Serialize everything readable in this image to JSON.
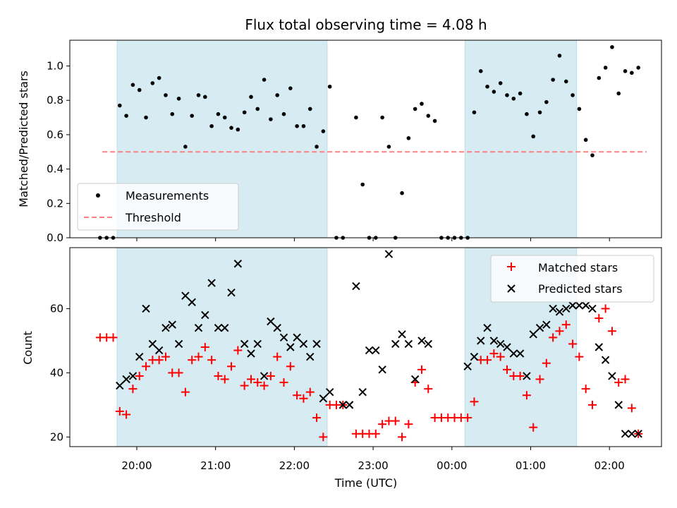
{
  "chart_data": [
    {
      "type": "scatter",
      "title": "Flux total observing time = 4.08 h",
      "ylabel": "Matched/Predicted stars",
      "ylim": [
        0,
        1.15
      ],
      "yticks": [
        "0.0",
        "0.2",
        "0.4",
        "0.6",
        "0.8",
        "1.0"
      ],
      "shaded_intervals": [
        [
          "19:45",
          "22:25"
        ],
        [
          "00:10",
          "01:35"
        ]
      ],
      "threshold": {
        "name": "Threshold",
        "value": 0.5,
        "x_range": [
          "19:30",
          "02:30"
        ],
        "color": "#ff8080"
      },
      "legend": {
        "position": "lower-left",
        "entries": [
          "Measurements",
          "Threshold"
        ]
      },
      "series": [
        {
          "name": "Measurements",
          "color": "#000000",
          "x": [
            "19:32",
            "19:37",
            "19:42",
            "19:47",
            "19:52",
            "19:57",
            "20:02",
            "20:07",
            "20:12",
            "20:17",
            "20:22",
            "20:27",
            "20:32",
            "20:37",
            "20:42",
            "20:47",
            "20:52",
            "20:57",
            "21:02",
            "21:07",
            "21:12",
            "21:17",
            "21:22",
            "21:27",
            "21:32",
            "21:37",
            "21:42",
            "21:47",
            "21:52",
            "21:57",
            "22:02",
            "22:07",
            "22:12",
            "22:17",
            "22:22",
            "22:27",
            "22:32",
            "22:37",
            "22:47",
            "22:52",
            "22:57",
            "23:02",
            "23:07",
            "23:12",
            "23:17",
            "23:22",
            "23:27",
            "23:32",
            "23:37",
            "23:42",
            "23:47",
            "23:52",
            "23:57",
            "00:02",
            "00:07",
            "00:12",
            "00:17",
            "00:22",
            "00:27",
            "00:32",
            "00:37",
            "00:42",
            "00:47",
            "00:52",
            "00:57",
            "01:02",
            "01:07",
            "01:12",
            "01:17",
            "01:22",
            "01:27",
            "01:32",
            "01:37",
            "01:42",
            "01:47",
            "01:52",
            "01:57",
            "02:02",
            "02:07",
            "02:12",
            "02:17",
            "02:22"
          ],
          "y": [
            0.0,
            0.0,
            0.0,
            0.77,
            0.71,
            0.89,
            0.86,
            0.7,
            0.9,
            0.93,
            0.83,
            0.72,
            0.81,
            0.53,
            0.71,
            0.83,
            0.82,
            0.65,
            0.72,
            0.7,
            0.64,
            0.63,
            0.73,
            0.82,
            0.75,
            0.92,
            0.69,
            0.83,
            0.72,
            0.87,
            0.65,
            0.65,
            0.75,
            0.53,
            0.62,
            0.88,
            0.0,
            0.0,
            0.7,
            0.31,
            0.0,
            0.0,
            0.7,
            0.53,
            0.0,
            0.26,
            0.58,
            0.75,
            0.78,
            0.71,
            0.68,
            0.0,
            0.0,
            0.0,
            0.0,
            0.0,
            0.73,
            0.97,
            0.88,
            0.85,
            0.9,
            0.83,
            0.81,
            0.84,
            0.72,
            0.59,
            0.73,
            0.79,
            0.92,
            1.06,
            0.91,
            0.83,
            0.75,
            0.57,
            0.48,
            0.93,
            0.99,
            1.11,
            0.84,
            0.97,
            0.96,
            0.99
          ]
        }
      ]
    },
    {
      "type": "scatter",
      "xlabel": "Time (UTC)",
      "ylabel": "Count",
      "ylim": [
        17,
        79
      ],
      "yticks": [
        "20",
        "40",
        "60"
      ],
      "xticks": [
        "20:00",
        "21:00",
        "22:00",
        "23:00",
        "00:00",
        "01:00",
        "02:00"
      ],
      "legend": {
        "position": "top-right",
        "entries": [
          "Matched stars",
          "Predicted stars"
        ]
      },
      "series": [
        {
          "name": "Matched stars",
          "color": "#ff0000",
          "marker": "+",
          "x": [
            "19:32",
            "19:37",
            "19:42",
            "19:47",
            "19:52",
            "19:57",
            "20:02",
            "20:07",
            "20:12",
            "20:17",
            "20:22",
            "20:27",
            "20:32",
            "20:37",
            "20:42",
            "20:47",
            "20:52",
            "20:57",
            "21:02",
            "21:07",
            "21:12",
            "21:17",
            "21:22",
            "21:27",
            "21:32",
            "21:37",
            "21:42",
            "21:47",
            "21:52",
            "21:57",
            "22:02",
            "22:07",
            "22:12",
            "22:17",
            "22:22",
            "22:27",
            "22:32",
            "22:37",
            "22:47",
            "22:52",
            "22:57",
            "23:02",
            "23:07",
            "23:12",
            "23:17",
            "23:22",
            "23:27",
            "23:32",
            "23:37",
            "23:42",
            "23:47",
            "23:52",
            "23:57",
            "00:02",
            "00:07",
            "00:12",
            "00:17",
            "00:22",
            "00:27",
            "00:32",
            "00:37",
            "00:42",
            "00:47",
            "00:52",
            "00:57",
            "01:02",
            "01:07",
            "01:12",
            "01:17",
            "01:22",
            "01:27",
            "01:32",
            "01:37",
            "01:42",
            "01:47",
            "01:52",
            "01:57",
            "02:02",
            "02:07",
            "02:12",
            "02:17",
            "02:22"
          ],
          "y": [
            51,
            51,
            51,
            28,
            27,
            35,
            39,
            42,
            44,
            44,
            45,
            40,
            40,
            34,
            44,
            45,
            48,
            44,
            39,
            38,
            42,
            47,
            36,
            38,
            37,
            36,
            39,
            45,
            37,
            42,
            33,
            32,
            34,
            26,
            20,
            30,
            30,
            30,
            21,
            21,
            21,
            21,
            24,
            25,
            25,
            20,
            24,
            37,
            41,
            35,
            26,
            26,
            26,
            26,
            26,
            26,
            31,
            44,
            44,
            46,
            45,
            41,
            39,
            39,
            33,
            23,
            38,
            43,
            51,
            53,
            55,
            49,
            45,
            35,
            30,
            57,
            60,
            53,
            37,
            38,
            29,
            21
          ]
        },
        {
          "name": "Predicted stars",
          "color": "#000000",
          "marker": "x",
          "x": [
            "19:47",
            "19:52",
            "19:57",
            "20:02",
            "20:07",
            "20:12",
            "20:17",
            "20:22",
            "20:27",
            "20:32",
            "20:37",
            "20:42",
            "20:47",
            "20:52",
            "20:57",
            "21:02",
            "21:07",
            "21:12",
            "21:17",
            "21:22",
            "21:27",
            "21:32",
            "21:37",
            "21:42",
            "21:47",
            "21:52",
            "21:57",
            "22:02",
            "22:07",
            "22:12",
            "22:17",
            "22:22",
            "22:27",
            "22:37",
            "22:42",
            "22:47",
            "22:52",
            "22:57",
            "23:02",
            "23:07",
            "23:12",
            "23:17",
            "23:22",
            "23:27",
            "23:32",
            "23:37",
            "23:42",
            "00:12",
            "00:17",
            "00:22",
            "00:27",
            "00:32",
            "00:37",
            "00:42",
            "00:47",
            "00:52",
            "00:57",
            "01:02",
            "01:07",
            "01:12",
            "01:17",
            "01:22",
            "01:27",
            "01:32",
            "01:37",
            "01:42",
            "01:47",
            "01:52",
            "01:57",
            "02:02",
            "02:07",
            "02:12",
            "02:17",
            "02:22"
          ],
          "y": [
            36,
            38,
            39,
            45,
            60,
            49,
            47,
            54,
            55,
            49,
            64,
            62,
            54,
            58,
            68,
            54,
            54,
            65,
            74,
            49,
            46,
            49,
            39,
            56,
            54,
            51,
            48,
            51,
            49,
            45,
            49,
            32,
            34,
            30,
            30,
            67,
            34,
            47,
            47,
            41,
            77,
            49,
            52,
            49,
            38,
            50,
            49,
            42,
            45,
            50,
            54,
            50,
            49,
            48,
            46,
            46,
            39,
            52,
            54,
            55,
            60,
            59,
            60,
            61,
            61,
            61,
            60,
            48,
            44,
            39,
            30,
            21,
            21,
            21
          ]
        }
      ]
    }
  ]
}
